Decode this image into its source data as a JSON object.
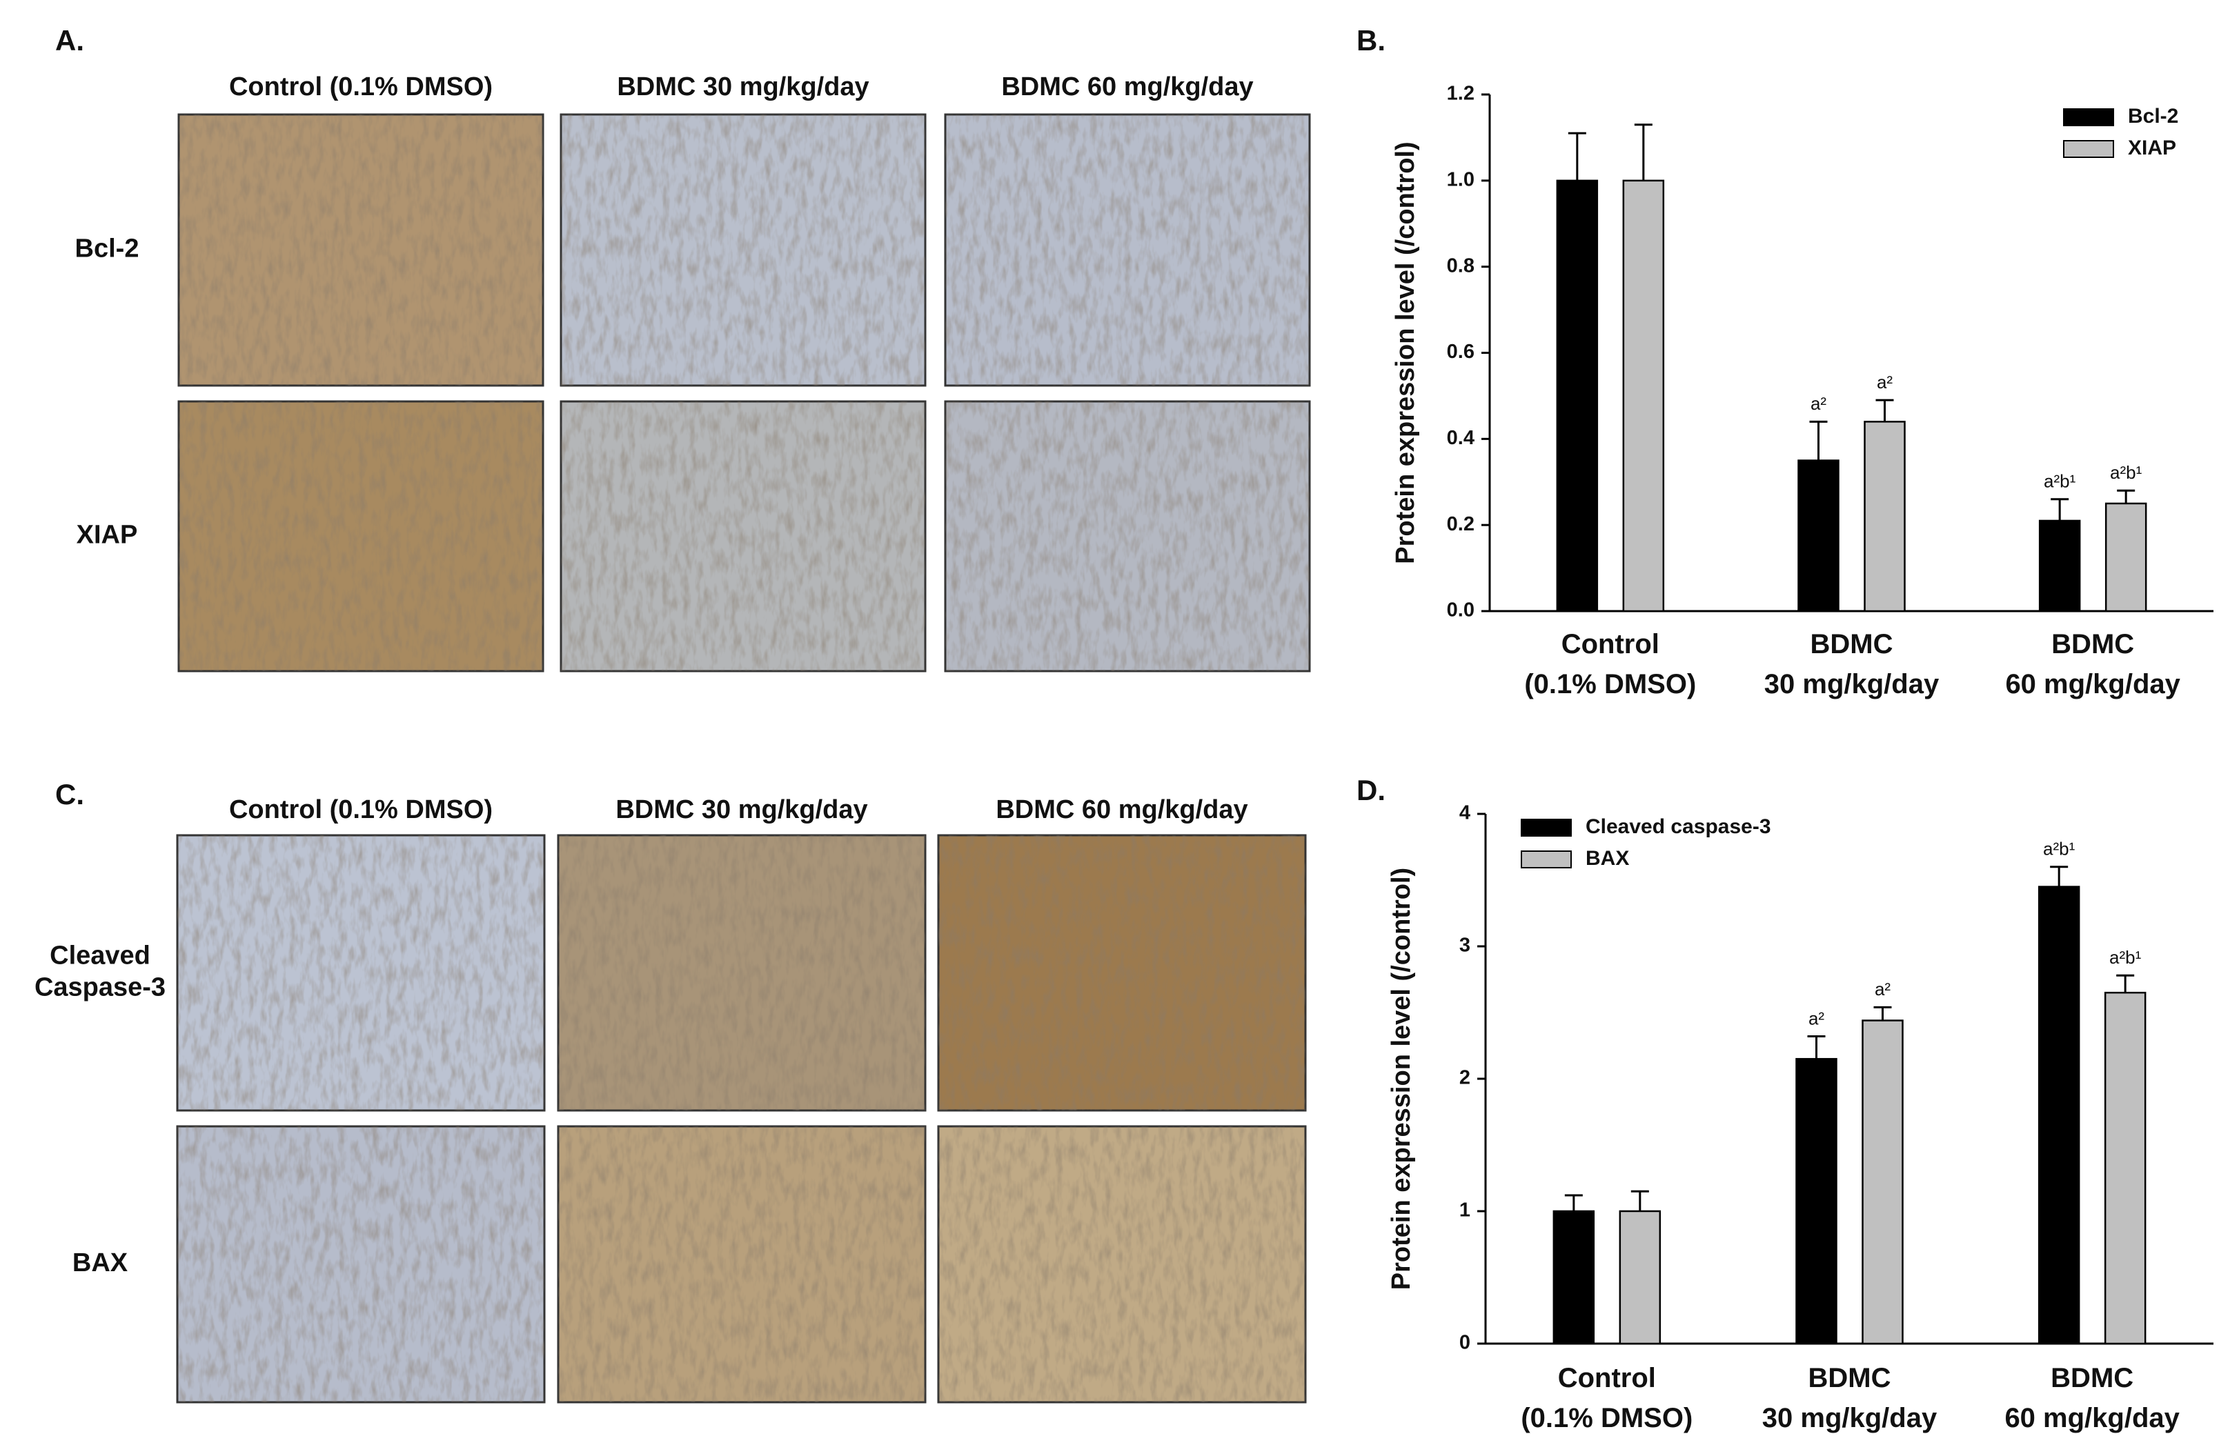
{
  "panels": [
    {
      "label": "A.",
      "columns": [
        "Control (0.1% DMSO)",
        "BDMC 30 mg/kg/day",
        "BDMC 60 mg/kg/day"
      ],
      "rows": [
        "Bcl-2",
        "XIAP"
      ]
    },
    {
      "label": "C.",
      "columns": [
        "Control (0.1% DMSO)",
        "BDMC 30 mg/kg/day",
        "BDMC 60 mg/kg/day"
      ],
      "rows": [
        "Cleaved\nCaspase-3",
        "BAX"
      ]
    }
  ],
  "chart_data": [
    {
      "type": "bar",
      "panel_label": "B.",
      "y_label": "Protein expression level (/control)",
      "categories": [
        "Control\n(0.1% DMSO)",
        "BDMC\n30 mg/kg/day",
        "BDMC\n60 mg/kg/day"
      ],
      "series": [
        {
          "name": "Bcl-2",
          "color": "#000000",
          "values": [
            1.0,
            0.35,
            0.21
          ],
          "errors": [
            0.11,
            0.09,
            0.05
          ],
          "annotations": [
            null,
            "a²",
            "a²b¹"
          ]
        },
        {
          "name": "XIAP",
          "color": "#c0c0c0",
          "values": [
            1.0,
            0.44,
            0.25
          ],
          "errors": [
            0.13,
            0.05,
            0.03
          ],
          "annotations": [
            null,
            "a²",
            "a²b¹"
          ]
        }
      ],
      "ylim": [
        0,
        1.2
      ],
      "yticks": [
        {
          "value": 0,
          "label": "0.0"
        },
        {
          "value": 0.2,
          "label": "0.2"
        },
        {
          "value": 0.4,
          "label": "0.4"
        },
        {
          "value": 0.6,
          "label": "0.6"
        },
        {
          "value": 0.8,
          "label": "0.8"
        },
        {
          "value": 1.0,
          "label": "1.0"
        },
        {
          "value": 1.2,
          "label": "1.2"
        }
      ],
      "legend": "upper right"
    },
    {
      "type": "bar",
      "panel_label": "D.",
      "y_label": "Protein expression level (/control)",
      "categories": [
        "Control\n(0.1% DMSO)",
        "BDMC\n30 mg/kg/day",
        "BDMC\n60 mg/kg/day"
      ],
      "series": [
        {
          "name": "Cleaved caspase-3",
          "color": "#000000",
          "values": [
            1.0,
            2.15,
            3.45
          ],
          "errors": [
            0.12,
            0.17,
            0.15
          ],
          "annotations": [
            null,
            "a²",
            "a²b¹"
          ]
        },
        {
          "name": "BAX",
          "color": "#c0c0c0",
          "values": [
            1.0,
            2.44,
            2.65
          ],
          "errors": [
            0.15,
            0.1,
            0.13
          ],
          "annotations": [
            null,
            "a²",
            "a²b¹"
          ]
        }
      ],
      "ylim": [
        0,
        4
      ],
      "yticks": [
        0,
        1,
        2,
        3,
        4
      ],
      "legend": "upper left"
    }
  ]
}
